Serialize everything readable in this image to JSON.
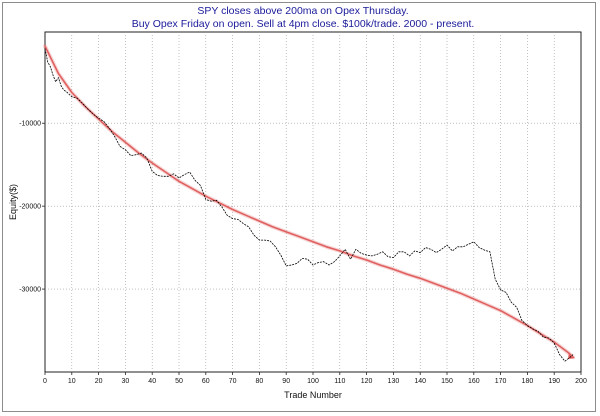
{
  "chart_data": {
    "type": "line",
    "title": "SPY closes above 200ma on Opex Thursday.",
    "subtitle": "Buy Opex Friday on open. Sell at 4pm close. $100k/trade. 2000 - present.",
    "xlabel": "Trade Number",
    "ylabel": "Equity($)",
    "xlim": [
      0,
      200
    ],
    "ylim": [
      -40000,
      1000
    ],
    "x_ticks": [
      "0",
      "10",
      "20",
      "30",
      "40",
      "50",
      "60",
      "70",
      "80",
      "90",
      "100",
      "110",
      "120",
      "130",
      "140",
      "150",
      "160",
      "170",
      "180",
      "190",
      "200"
    ],
    "y_ticks": [
      {
        "value": -10000,
        "label": "-10000"
      },
      {
        "value": -20000,
        "label": "-20000"
      },
      {
        "value": -30000,
        "label": "-30000"
      }
    ],
    "grid": true,
    "series": [
      {
        "name": "equity",
        "style": "dashed",
        "color": "#000000",
        "x": [
          0,
          1,
          2,
          3,
          4,
          5,
          6,
          7,
          8,
          10,
          12,
          14,
          16,
          18,
          20,
          22,
          24,
          26,
          28,
          30,
          32,
          34,
          36,
          38,
          40,
          42,
          44,
          46,
          48,
          50,
          52,
          54,
          56,
          58,
          60,
          62,
          64,
          66,
          68,
          70,
          72,
          74,
          76,
          78,
          80,
          82,
          84,
          86,
          88,
          90,
          92,
          94,
          96,
          98,
          100,
          102,
          104,
          106,
          108,
          110,
          112,
          114,
          116,
          118,
          120,
          122,
          124,
          126,
          128,
          130,
          132,
          134,
          136,
          138,
          140,
          142,
          144,
          146,
          148,
          150,
          152,
          154,
          156,
          158,
          160,
          162,
          164,
          166,
          168,
          170,
          172,
          174,
          176,
          178,
          180,
          182,
          184,
          186,
          188,
          190,
          192,
          194,
          196,
          197
        ],
        "values": [
          -1000,
          -2600,
          -3200,
          -4200,
          -5000,
          -4500,
          -5500,
          -6000,
          -6200,
          -6800,
          -7000,
          -7600,
          -8300,
          -8900,
          -9400,
          -9800,
          -10600,
          -11600,
          -12800,
          -13200,
          -13900,
          -13800,
          -13600,
          -14200,
          -15800,
          -16300,
          -16400,
          -16400,
          -16100,
          -16600,
          -16200,
          -15900,
          -16900,
          -17500,
          -19200,
          -19400,
          -19300,
          -20100,
          -21100,
          -21500,
          -21600,
          -22100,
          -22500,
          -23500,
          -24100,
          -24100,
          -24200,
          -24900,
          -25900,
          -27200,
          -27100,
          -26900,
          -26300,
          -26400,
          -27100,
          -26800,
          -26700,
          -27100,
          -26700,
          -26000,
          -25200,
          -26400,
          -25200,
          -25700,
          -25900,
          -26000,
          -25800,
          -25500,
          -26100,
          -26200,
          -25500,
          -25500,
          -26000,
          -25400,
          -25600,
          -25000,
          -25200,
          -25600,
          -25200,
          -24700,
          -25400,
          -24900,
          -24900,
          -24600,
          -24300,
          -25000,
          -25300,
          -25500,
          -28800,
          -30100,
          -30400,
          -31600,
          -32200,
          -33800,
          -34400,
          -34800,
          -35100,
          -35800,
          -35900,
          -36500,
          -37900,
          -38700,
          -38200,
          -37900
        ]
      },
      {
        "name": "trend",
        "style": "solid",
        "color": "#e06060",
        "x": [
          0,
          5,
          10,
          15,
          20,
          25,
          30,
          35,
          40,
          45,
          50,
          55,
          60,
          65,
          70,
          75,
          80,
          85,
          90,
          95,
          100,
          105,
          110,
          115,
          120,
          125,
          130,
          135,
          140,
          145,
          150,
          155,
          160,
          165,
          170,
          175,
          180,
          185,
          190,
          195,
          197
        ],
        "values": [
          -700,
          -4000,
          -6300,
          -8000,
          -9500,
          -11000,
          -12300,
          -13600,
          -14800,
          -15900,
          -17000,
          -17900,
          -18800,
          -19600,
          -20400,
          -21100,
          -21800,
          -22500,
          -23100,
          -23700,
          -24300,
          -24900,
          -25400,
          -26000,
          -26500,
          -27100,
          -27600,
          -28200,
          -28700,
          -29300,
          -29900,
          -30500,
          -31200,
          -31900,
          -32600,
          -33500,
          -34400,
          -35400,
          -36400,
          -37600,
          -38200
        ]
      }
    ]
  }
}
